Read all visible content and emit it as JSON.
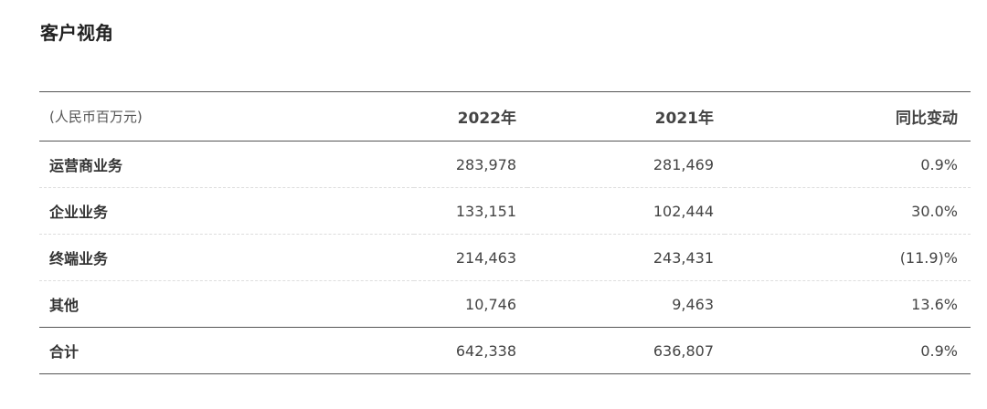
{
  "section": {
    "title": "客户视角"
  },
  "table": {
    "header": {
      "unit": "(人民币百万元)",
      "col_2022": "2022年",
      "col_2021": "2021年",
      "col_yoy": "同比变动"
    },
    "rows": [
      {
        "label": "运营商业务",
        "y2022": "283,978",
        "y2021": "281,469",
        "yoy": "0.9%"
      },
      {
        "label": "企业业务",
        "y2022": "133,151",
        "y2021": "102,444",
        "yoy": "30.0%"
      },
      {
        "label": "终端业务",
        "y2022": "214,463",
        "y2021": "243,431",
        "yoy": "(11.9)%"
      },
      {
        "label": "其他",
        "y2022": "10,746",
        "y2021": "9,463",
        "yoy": "13.6%"
      }
    ],
    "total": {
      "label": "合计",
      "y2022": "642,338",
      "y2021": "636,807",
      "yoy": "0.9%"
    }
  }
}
